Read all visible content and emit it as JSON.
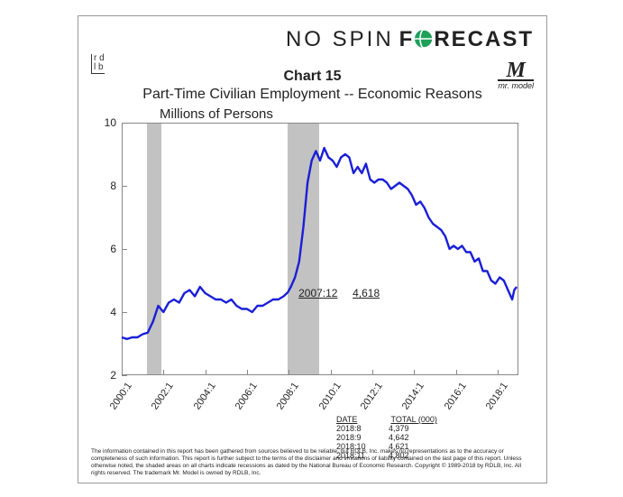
{
  "brand": {
    "left": "NO SPIN",
    "right_fore": "F",
    "right_recast": "RECAST",
    "rdlb_top": "r d",
    "rdlb_bot": "l b",
    "mini_logo_sub": "mr. model"
  },
  "chart": {
    "number": "Chart 15",
    "title": "Part-Time Civilian Employment -- Economic Reasons",
    "subtitle": "Millions of Persons",
    "type": "line",
    "line_color": "#1a1fd6",
    "line_width": 2.4,
    "background_color": "#ffffff",
    "recession_color": "#b7b7b7",
    "axis_color": "#888888",
    "text_color": "#222222",
    "ylim": [
      2,
      10
    ],
    "yticks": [
      2,
      4,
      6,
      8,
      10
    ],
    "xlim_years": [
      2000,
      2019
    ],
    "xticks_labels": [
      "2000:1",
      "2002:1",
      "2004:1",
      "2006:1",
      "2008:1",
      "2010:1",
      "2012:1",
      "2014:1",
      "2016:1",
      "2018:1"
    ],
    "xticks_years": [
      2000,
      2002,
      2004,
      2006,
      2008,
      2010,
      2012,
      2014,
      2016,
      2018
    ],
    "recessions": [
      {
        "start_year": 2001.2,
        "end_year": 2001.9
      },
      {
        "start_year": 2007.95,
        "end_year": 2009.45
      }
    ],
    "annotation": {
      "date_label": "2007:12",
      "value_label": "4,618",
      "year": 2007.95,
      "value": 4.618
    },
    "series": [
      {
        "t": 2000.0,
        "v": 3.2
      },
      {
        "t": 2000.25,
        "v": 3.15
      },
      {
        "t": 2000.5,
        "v": 3.2
      },
      {
        "t": 2000.75,
        "v": 3.2
      },
      {
        "t": 2001.0,
        "v": 3.3
      },
      {
        "t": 2001.25,
        "v": 3.35
      },
      {
        "t": 2001.5,
        "v": 3.7
      },
      {
        "t": 2001.75,
        "v": 4.2
      },
      {
        "t": 2002.0,
        "v": 4.0
      },
      {
        "t": 2002.25,
        "v": 4.3
      },
      {
        "t": 2002.5,
        "v": 4.4
      },
      {
        "t": 2002.75,
        "v": 4.3
      },
      {
        "t": 2003.0,
        "v": 4.6
      },
      {
        "t": 2003.25,
        "v": 4.7
      },
      {
        "t": 2003.5,
        "v": 4.5
      },
      {
        "t": 2003.75,
        "v": 4.8
      },
      {
        "t": 2004.0,
        "v": 4.6
      },
      {
        "t": 2004.25,
        "v": 4.5
      },
      {
        "t": 2004.5,
        "v": 4.4
      },
      {
        "t": 2004.75,
        "v": 4.4
      },
      {
        "t": 2005.0,
        "v": 4.3
      },
      {
        "t": 2005.25,
        "v": 4.4
      },
      {
        "t": 2005.5,
        "v": 4.2
      },
      {
        "t": 2005.75,
        "v": 4.1
      },
      {
        "t": 2006.0,
        "v": 4.1
      },
      {
        "t": 2006.25,
        "v": 4.0
      },
      {
        "t": 2006.5,
        "v": 4.2
      },
      {
        "t": 2006.75,
        "v": 4.2
      },
      {
        "t": 2007.0,
        "v": 4.3
      },
      {
        "t": 2007.25,
        "v": 4.4
      },
      {
        "t": 2007.5,
        "v": 4.4
      },
      {
        "t": 2007.75,
        "v": 4.5
      },
      {
        "t": 2007.95,
        "v": 4.62
      },
      {
        "t": 2008.1,
        "v": 4.8
      },
      {
        "t": 2008.3,
        "v": 5.1
      },
      {
        "t": 2008.5,
        "v": 5.6
      },
      {
        "t": 2008.7,
        "v": 6.7
      },
      {
        "t": 2008.9,
        "v": 8.1
      },
      {
        "t": 2009.1,
        "v": 8.8
      },
      {
        "t": 2009.3,
        "v": 9.1
      },
      {
        "t": 2009.5,
        "v": 8.8
      },
      {
        "t": 2009.7,
        "v": 9.2
      },
      {
        "t": 2009.9,
        "v": 8.9
      },
      {
        "t": 2010.1,
        "v": 8.8
      },
      {
        "t": 2010.3,
        "v": 8.6
      },
      {
        "t": 2010.5,
        "v": 8.9
      },
      {
        "t": 2010.7,
        "v": 9.0
      },
      {
        "t": 2010.9,
        "v": 8.9
      },
      {
        "t": 2011.1,
        "v": 8.4
      },
      {
        "t": 2011.3,
        "v": 8.6
      },
      {
        "t": 2011.5,
        "v": 8.4
      },
      {
        "t": 2011.7,
        "v": 8.7
      },
      {
        "t": 2011.9,
        "v": 8.2
      },
      {
        "t": 2012.1,
        "v": 8.1
      },
      {
        "t": 2012.3,
        "v": 8.2
      },
      {
        "t": 2012.5,
        "v": 8.2
      },
      {
        "t": 2012.7,
        "v": 8.1
      },
      {
        "t": 2012.9,
        "v": 7.9
      },
      {
        "t": 2013.1,
        "v": 8.0
      },
      {
        "t": 2013.3,
        "v": 8.1
      },
      {
        "t": 2013.5,
        "v": 8.0
      },
      {
        "t": 2013.7,
        "v": 7.9
      },
      {
        "t": 2013.9,
        "v": 7.7
      },
      {
        "t": 2014.1,
        "v": 7.4
      },
      {
        "t": 2014.3,
        "v": 7.5
      },
      {
        "t": 2014.5,
        "v": 7.3
      },
      {
        "t": 2014.7,
        "v": 7.0
      },
      {
        "t": 2014.9,
        "v": 6.8
      },
      {
        "t": 2015.1,
        "v": 6.7
      },
      {
        "t": 2015.3,
        "v": 6.6
      },
      {
        "t": 2015.5,
        "v": 6.4
      },
      {
        "t": 2015.7,
        "v": 6.0
      },
      {
        "t": 2015.9,
        "v": 6.1
      },
      {
        "t": 2016.1,
        "v": 6.0
      },
      {
        "t": 2016.3,
        "v": 6.1
      },
      {
        "t": 2016.5,
        "v": 5.9
      },
      {
        "t": 2016.7,
        "v": 5.9
      },
      {
        "t": 2016.9,
        "v": 5.6
      },
      {
        "t": 2017.1,
        "v": 5.7
      },
      {
        "t": 2017.3,
        "v": 5.3
      },
      {
        "t": 2017.5,
        "v": 5.3
      },
      {
        "t": 2017.7,
        "v": 5.0
      },
      {
        "t": 2017.9,
        "v": 4.9
      },
      {
        "t": 2018.1,
        "v": 5.1
      },
      {
        "t": 2018.3,
        "v": 5.0
      },
      {
        "t": 2018.5,
        "v": 4.7
      },
      {
        "t": 2018.7,
        "v": 4.4
      },
      {
        "t": 2018.8,
        "v": 4.7
      },
      {
        "t": 2018.92,
        "v": 4.8
      }
    ],
    "table": {
      "headers": [
        "DATE",
        "TOTAL (000)"
      ],
      "rows": [
        [
          "2018:8",
          "4,379"
        ],
        [
          "2018:9",
          "4,642"
        ],
        [
          "2018:10",
          "4,621"
        ],
        [
          "2018:11",
          "4,802"
        ]
      ]
    }
  },
  "footnote": "The information contained in this report has been gathered from sources believed to be reliable, but RDLB, Inc. makes no representations as to the accuracy or completeness of such information. This report is further subject to the terms of the disclaimer and limitations of liability contained on the last page of this report. Unless otherwise noted, the shaded areas on all charts indicate recessions as dated by the National Bureau of Economic Research. Copyright © 1989-2018 by RDLB, Inc. All rights reserved. The trademark Mr. Model is owned by RDLB, Inc."
}
